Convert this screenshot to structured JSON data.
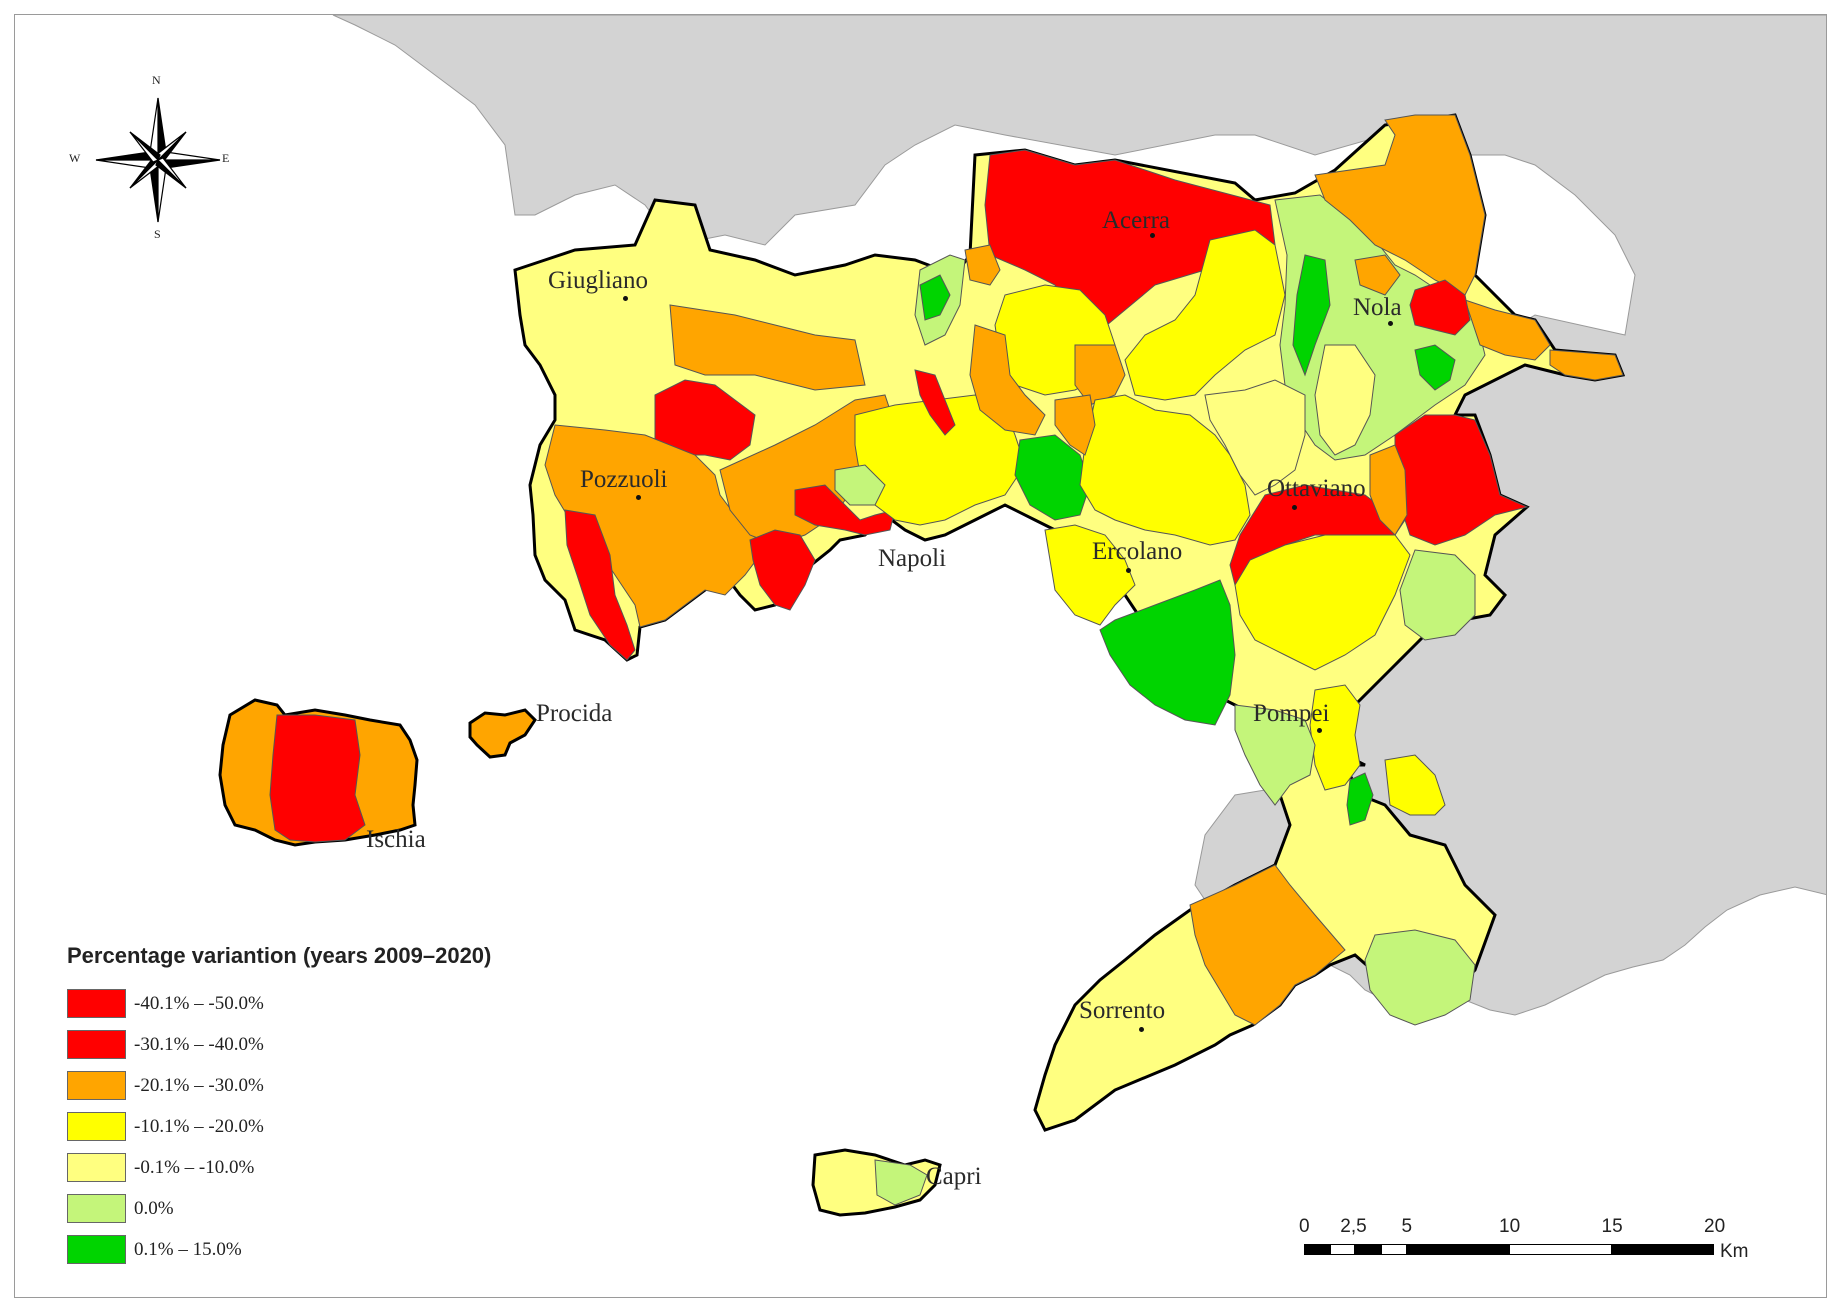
{
  "map": {
    "legend": {
      "title": "Percentage variantion (years 2009–2020)",
      "classes": [
        {
          "label": "-40.1% – -50.0%",
          "color": "#ff0000"
        },
        {
          "label": "-30.1% – -40.0%",
          "color": "#ff0000"
        },
        {
          "label": "-20.1% – -30.0%",
          "color": "#ffa500"
        },
        {
          "label": "-10.1% – -20.0%",
          "color": "#ffff00"
        },
        {
          "label": "-0.1% – -10.0%",
          "color": "#ffff80"
        },
        {
          "label": "0.0%",
          "color": "#c4f57a"
        },
        {
          "label": "0.1% – 15.0%",
          "color": "#00d400"
        }
      ]
    },
    "places": {
      "giugliano": "Giugliano",
      "acerra": "Acerra",
      "nola": "Nola",
      "pozzuoli": "Pozzuoli",
      "ottaviano": "Ottaviano",
      "ercolano": "Ercolano",
      "napoli": "Napoli",
      "procida": "Procida",
      "ischia": "Ischia",
      "pompei": "Pompei",
      "sorrento": "Sorrento",
      "capri": "Capri"
    },
    "compass": {
      "n": "N",
      "s": "S",
      "e": "E",
      "w": "W"
    },
    "scalebar": {
      "ticks": [
        "0",
        "2,5",
        "5",
        "10",
        "15",
        "20"
      ],
      "unit": "Km"
    },
    "colors": {
      "sea": "#ffffff",
      "outside_land": "#d3d3d3",
      "border": "#000000"
    }
  }
}
